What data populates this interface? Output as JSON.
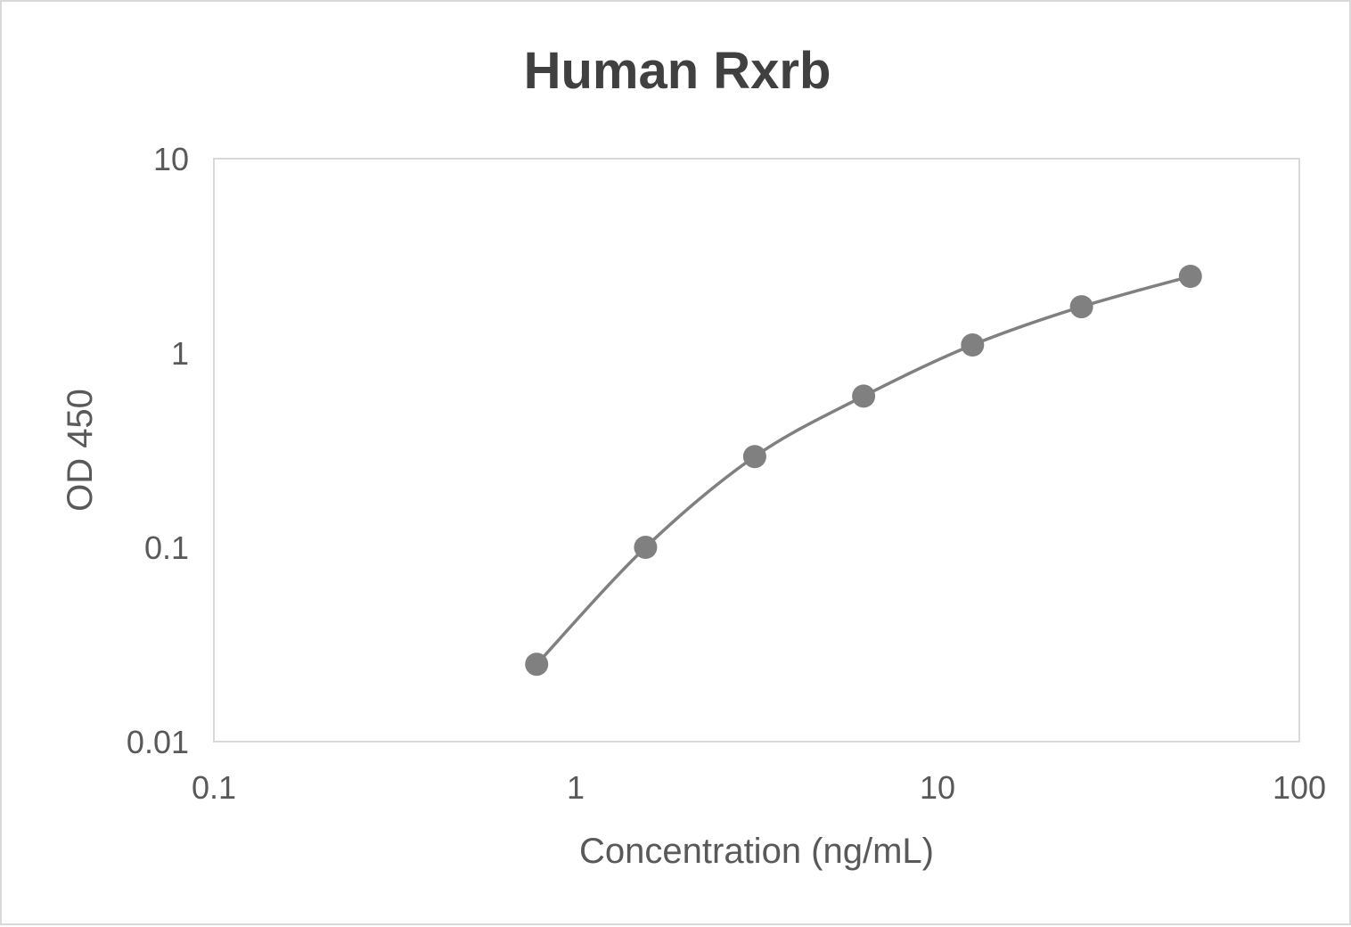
{
  "chart_data": {
    "type": "scatter",
    "title": "Human Rxrb",
    "xlabel": "Concentration (ng/mL)",
    "ylabel": "OD 450",
    "x_scale": "log",
    "y_scale": "log",
    "xlim": [
      0.1,
      100
    ],
    "ylim": [
      0.01,
      10
    ],
    "x_ticks": [
      "0.1",
      "1",
      "10",
      "100"
    ],
    "y_ticks": [
      "0.01",
      "0.1",
      "1",
      "10"
    ],
    "grid": false,
    "legend": "none",
    "series": [
      {
        "x": [
          0.78,
          1.56,
          3.125,
          6.25,
          12.5,
          25,
          50
        ],
        "y": [
          0.025,
          0.1,
          0.293,
          0.6,
          1.1,
          1.73,
          2.48
        ],
        "color": "#808080",
        "smooth_line": true
      }
    ]
  }
}
